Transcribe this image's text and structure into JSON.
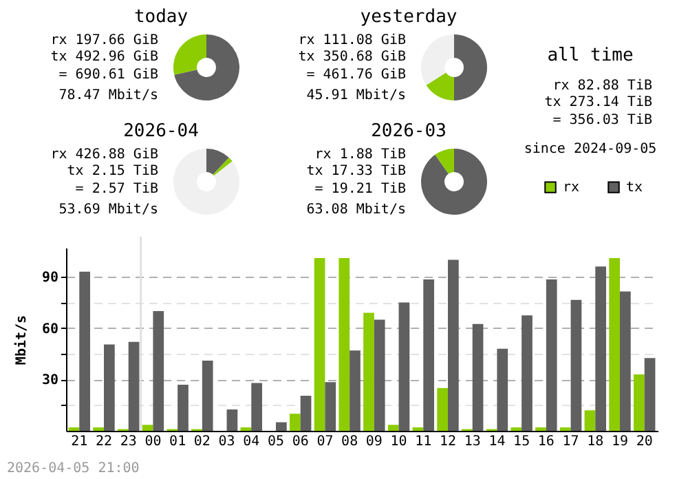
{
  "chart_data": [
    {
      "type": "donut",
      "title": "today",
      "categories": [
        null,
        null
      ],
      "values": [
        71.4,
        28.6
      ],
      "colors": [
        "#606060",
        "#8ccc00"
      ],
      "annotations": [
        "rx 197.66 GiB",
        "tx 492.96 GiB",
        "= 690.61 GiB",
        "78.47 Mbit/s"
      ]
    },
    {
      "type": "donut",
      "title": "yesterday",
      "categories": [
        null,
        null,
        null
      ],
      "values": [
        50,
        16,
        34
      ],
      "colors": [
        "#606060",
        "#8ccc00",
        "#f0f0f0"
      ],
      "annotations": [
        "rx 111.08 GiB",
        "tx 350.68 GiB",
        "= 461.76 GiB",
        "45.91 Mbit/s"
      ]
    },
    {
      "type": "other",
      "title": "all time",
      "annotations": [
        "rx 82.88 TiB",
        "tx 273.14 TiB",
        "= 356.03 TiB",
        "since 2024-09-05"
      ]
    },
    {
      "type": "donut",
      "title": "2026-04",
      "categories": [
        null,
        null,
        null
      ],
      "values": [
        12,
        2.4,
        85.6
      ],
      "colors": [
        "#606060",
        "#8ccc00",
        "#f0f0f0"
      ],
      "annotations": [
        "rx 426.88 GiB",
        "tx 2.15 TiB",
        "= 2.57 TiB",
        "53.69 Mbit/s"
      ]
    },
    {
      "type": "donut",
      "title": "2026-03",
      "categories": [
        null,
        null
      ],
      "values": [
        90.2,
        9.8
      ],
      "colors": [
        "#606060",
        "#8ccc00"
      ],
      "annotations": [
        "rx 1.88 TiB",
        "tx 17.33 TiB",
        "= 19.21 TiB",
        "63.08 Mbit/s"
      ]
    },
    {
      "type": "bar",
      "categories": [
        "21",
        "22",
        "23",
        "00",
        "01",
        "02",
        "03",
        "04",
        "05",
        "06",
        "07",
        "08",
        "09",
        "10",
        "11",
        "12",
        "13",
        "14",
        "15",
        "16",
        "17",
        "18",
        "19",
        "20"
      ],
      "series": [
        {
          "name": "rx",
          "color": "#8ccc00",
          "values": [
            2,
            2,
            1,
            3.5,
            1,
            1,
            0,
            2,
            0,
            10,
            101,
            101,
            69,
            3.5,
            2,
            25,
            1,
            1,
            2,
            2,
            2,
            12,
            101,
            33
          ]
        },
        {
          "name": "tx",
          "color": "#606060",
          "values": [
            93,
            50.5,
            52,
            70,
            27,
            41,
            12.5,
            28,
            5,
            20.5,
            28.5,
            47,
            65,
            75,
            88.5,
            100,
            62.5,
            48,
            67.5,
            88.5,
            76.5,
            96,
            81.5,
            42.5
          ]
        }
      ],
      "ylabel": "Mbit/s",
      "ylim": [
        0,
        107
      ],
      "yticks": [
        {
          "value": 15,
          "label": null
        },
        30,
        {
          "value": 45,
          "label": null
        },
        60,
        {
          "value": 75,
          "label": null
        },
        90
      ],
      "grid": "y",
      "legend": "top right",
      "ref_lines": [
        {
          "axis": "x",
          "value": "00",
          "color": "#e0e0e0"
        }
      ],
      "annotations": [
        "2026-04-05 21:00"
      ]
    }
  ]
}
